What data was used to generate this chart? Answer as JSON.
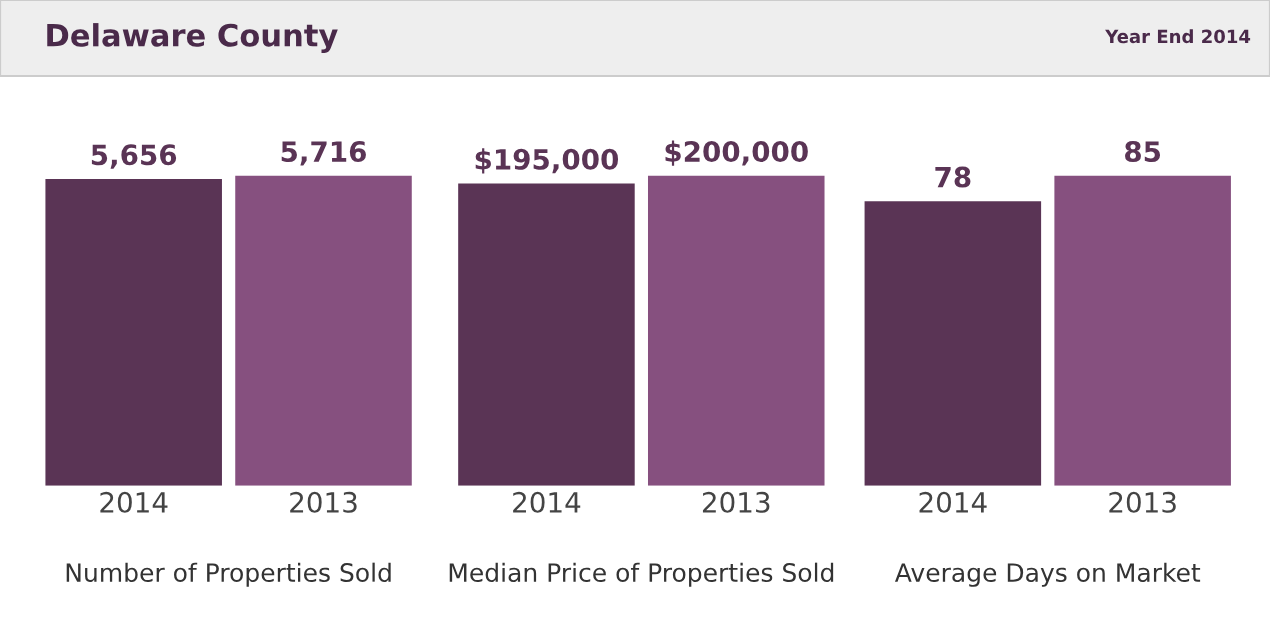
{
  "chart_data": [
    {
      "type": "bar",
      "title": "Delaware County",
      "categories": [
        "2014",
        "2013"
      ],
      "values": [
        5656,
        5716
      ],
      "colors": [
        "#5a3455",
        "#86507f"
      ],
      "value_labels": [
        "5,656",
        "5,716"
      ],
      "xlabel": "Number of Properties Sold",
      "grid": false,
      "legend": false
    },
    {
      "type": "bar",
      "categories": [
        "2014",
        "2013"
      ],
      "values": [
        195000,
        200000
      ],
      "colors": [
        "#5a3455",
        "#86507f"
      ],
      "value_labels": [
        "$195,000",
        "$200,000"
      ],
      "xlabel": "Median Price of Properties Sold",
      "grid": false,
      "legend": false
    },
    {
      "type": "bar",
      "subtitle": "Year End 2014",
      "categories": [
        "2014",
        "2013"
      ],
      "values": [
        78,
        85
      ],
      "colors": [
        "#5a3455",
        "#86507f"
      ],
      "value_labels": [
        "78",
        "85"
      ],
      "xlabel": "Average Days on Market",
      "grid": false,
      "legend": false
    }
  ]
}
